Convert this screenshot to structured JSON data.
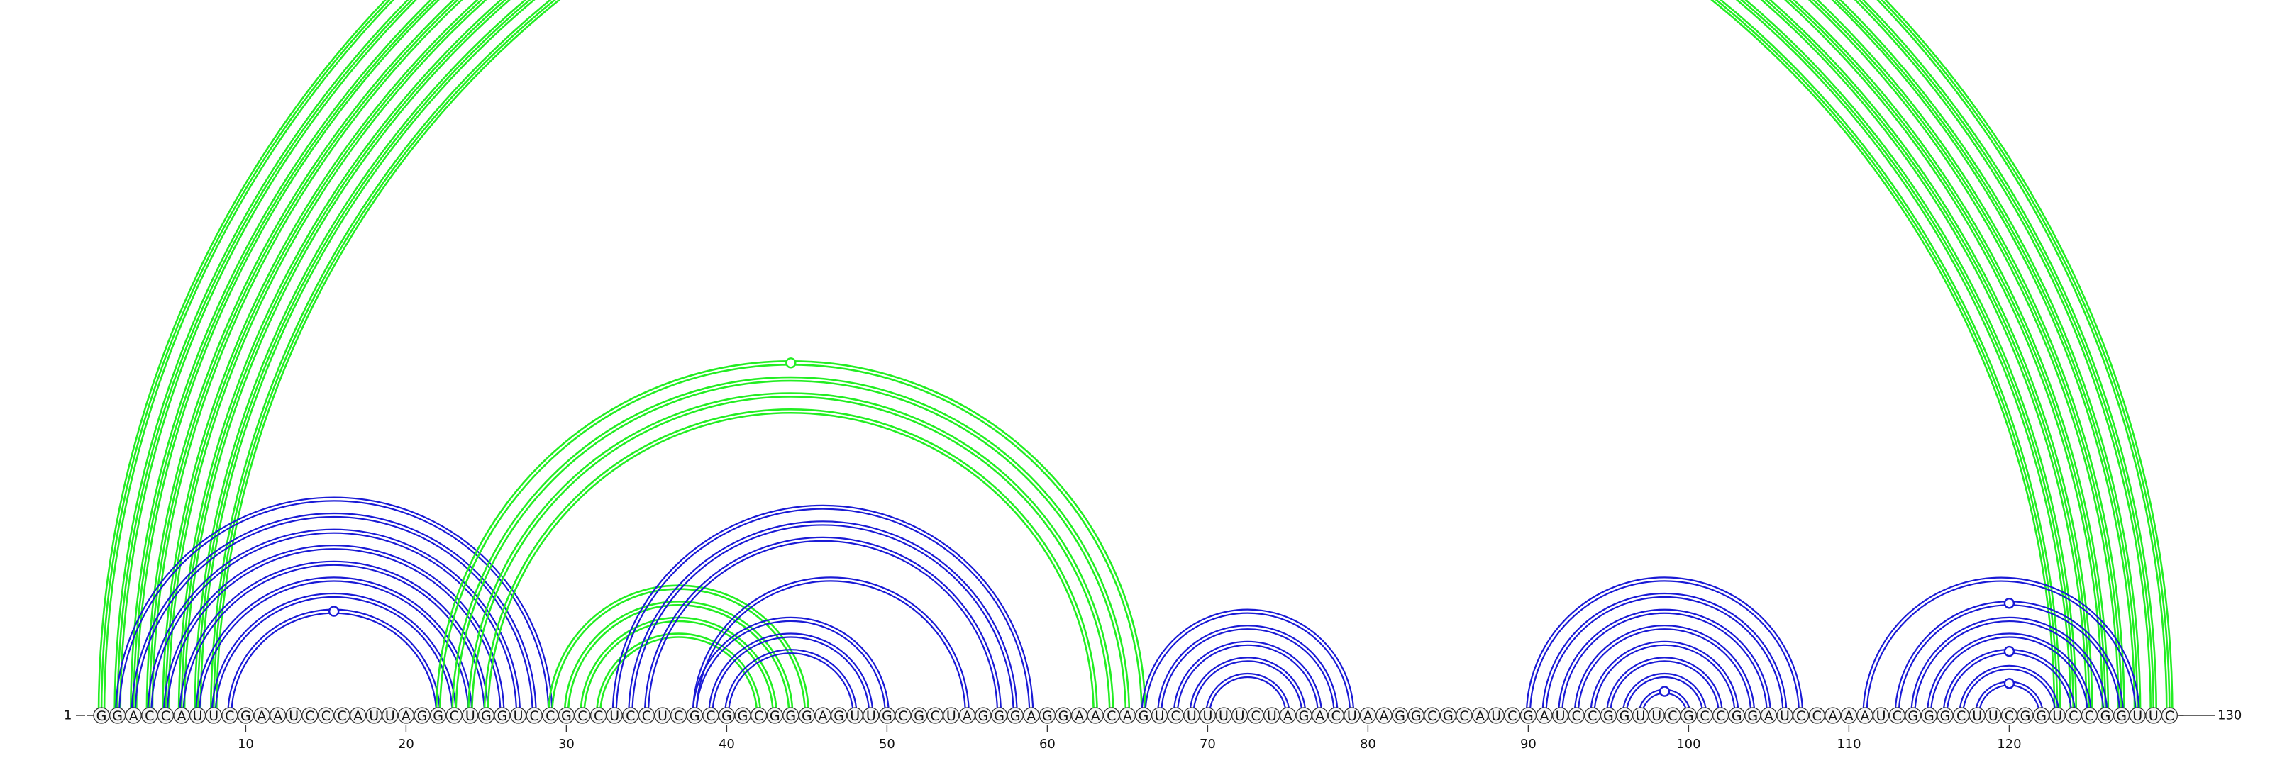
{
  "diagram": {
    "sequence": "GGACCAUUCGAAUCCCAUUAGGCUGGUCCGCCUCCUCGCGGCGGGAGUUGCGCUAGGGAGGAACAGUCUUUUCUAGACUAAGGCGCAUCGAUCCGGUUCGCCGGAUCCAAAUCGGGCUUCGGUCCGGUUC",
    "length": 130,
    "start_label": "1",
    "end_label": "130",
    "tick_labels": [
      "10",
      "20",
      "30",
      "40",
      "50",
      "60",
      "70",
      "80",
      "90",
      "100",
      "110",
      "120"
    ],
    "colors": {
      "blue": "#1a1ad6",
      "green": "#22ee22",
      "nucleotide_fill": "#f4f4f4",
      "nucleotide_stroke": "#333333"
    },
    "arc_groups": [
      {
        "color": "green",
        "lanes": 3,
        "pairs": [
          [
            1,
            130
          ],
          [
            2,
            129
          ],
          [
            3,
            128
          ],
          [
            4,
            127
          ],
          [
            5,
            126
          ],
          [
            6,
            125
          ],
          [
            7,
            124
          ],
          [
            8,
            123
          ]
        ]
      },
      {
        "color": "blue",
        "lanes": 2,
        "pairs": [
          [
            2,
            29
          ],
          [
            3,
            28
          ],
          [
            4,
            27
          ],
          [
            5,
            26
          ],
          [
            6,
            25
          ],
          [
            7,
            24
          ],
          [
            8,
            23
          ],
          [
            9,
            22
          ]
        ]
      },
      {
        "color": "green",
        "lanes": 2,
        "pairs": [
          [
            22,
            66
          ],
          [
            23,
            65
          ],
          [
            24,
            64
          ],
          [
            25,
            63
          ]
        ]
      },
      {
        "color": "green",
        "lanes": 2,
        "pairs": [
          [
            29,
            45
          ],
          [
            30,
            44
          ],
          [
            31,
            43
          ],
          [
            32,
            42
          ]
        ]
      },
      {
        "color": "blue",
        "lanes": 2,
        "pairs": [
          [
            33,
            59
          ],
          [
            34,
            58
          ],
          [
            35,
            57
          ],
          [
            38,
            55
          ]
        ]
      },
      {
        "color": "blue",
        "lanes": 2,
        "pairs": [
          [
            38,
            50
          ],
          [
            39,
            49
          ],
          [
            40,
            48
          ]
        ]
      },
      {
        "color": "blue",
        "lanes": 2,
        "pairs": [
          [
            66,
            79
          ],
          [
            67,
            78
          ],
          [
            68,
            77
          ],
          [
            69,
            76
          ],
          [
            70,
            75
          ]
        ]
      },
      {
        "color": "blue",
        "lanes": 2,
        "pairs": [
          [
            90,
            107
          ],
          [
            91,
            106
          ],
          [
            92,
            105
          ],
          [
            93,
            104
          ],
          [
            94,
            103
          ],
          [
            95,
            102
          ],
          [
            96,
            101
          ],
          [
            97,
            100
          ]
        ]
      },
      {
        "color": "blue",
        "lanes": 2,
        "pairs": [
          [
            111,
            128
          ],
          [
            113,
            127
          ],
          [
            114,
            126
          ],
          [
            115,
            125
          ],
          [
            116,
            124
          ],
          [
            117,
            123
          ],
          [
            118,
            122
          ]
        ]
      }
    ],
    "markers": [
      {
        "color": "green",
        "pair": [
          1,
          130
        ]
      },
      {
        "color": "green",
        "pair": [
          22,
          66
        ]
      },
      {
        "color": "blue",
        "pair": [
          9,
          22
        ]
      },
      {
        "color": "blue",
        "pair": [
          97,
          100
        ]
      },
      {
        "color": "blue",
        "pair": [
          113,
          127
        ]
      },
      {
        "color": "blue",
        "pair": [
          116,
          124
        ]
      },
      {
        "color": "blue",
        "pair": [
          118,
          122
        ]
      }
    ]
  }
}
